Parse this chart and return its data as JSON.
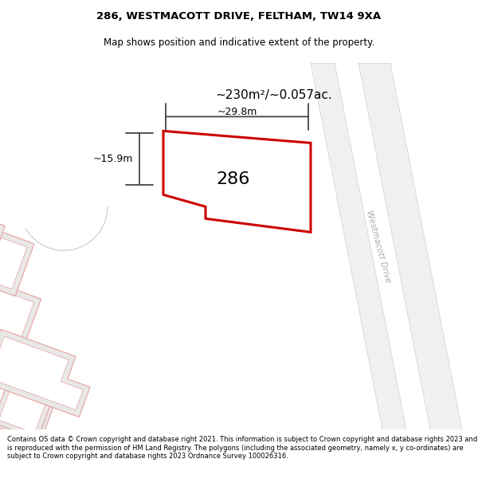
{
  "title_line1": "286, WESTMACOTT DRIVE, FELTHAM, TW14 9XA",
  "title_line2": "Map shows position and indicative extent of the property.",
  "footer_text": "Contains OS data © Crown copyright and database right 2021. This information is subject to Crown copyright and database rights 2023 and is reproduced with the permission of HM Land Registry. The polygons (including the associated geometry, namely x, y co-ordinates) are subject to Crown copyright and database rights 2023 Ordnance Survey 100026316.",
  "property_label": "286",
  "area_label": "~230m²/~0.057ac.",
  "width_label": "~29.8m",
  "height_label": "~15.9m",
  "road_label": "Westmacott Drive",
  "building_fill": "#e8e8e8",
  "building_edge": "#e8a0a0",
  "road_color": "#e0e0e0",
  "road_edge": "#cccccc",
  "highlight_edge": "#cc0000",
  "dim_color": "#444444"
}
